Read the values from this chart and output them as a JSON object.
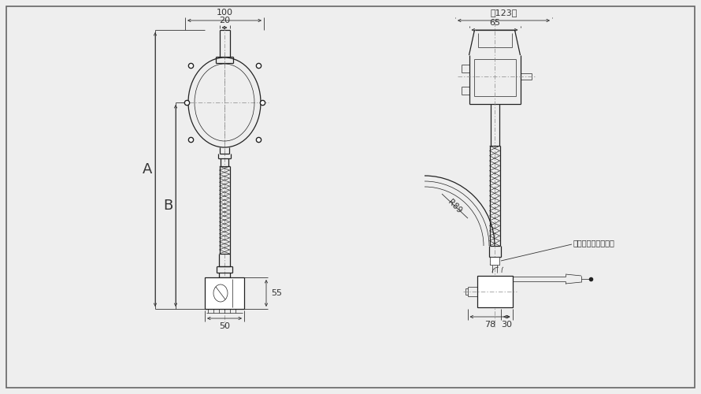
{
  "bg_color": "#eeeeee",
  "line_color": "#222222",
  "dim_color": "#333333",
  "dim_100": "100",
  "dim_20": "20",
  "dim_A": "A",
  "dim_B": "B",
  "dim_55": "55",
  "dim_50": "50",
  "dim_123": "（123）",
  "dim_65": "65",
  "dim_R89": "R89",
  "dim_30": "30",
  "dim_78": "78",
  "label_heat": "熱収縮チューブ包覆"
}
